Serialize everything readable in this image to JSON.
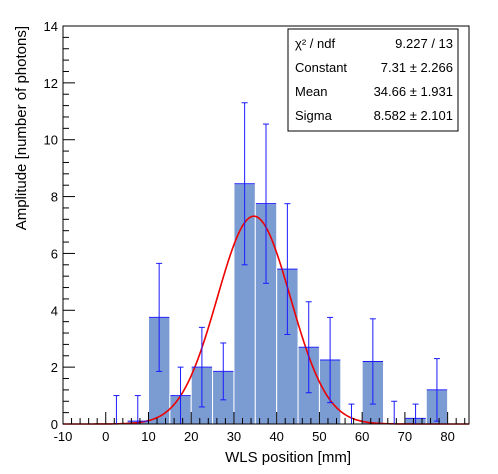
{
  "chart_data": {
    "type": "bar",
    "xlabel": "WLS position [mm]",
    "ylabel": "Amplitude [number of photons]",
    "xlim": [
      -10,
      85
    ],
    "ylim": [
      0,
      14
    ],
    "x_ticks": [
      "-10",
      "0",
      "10",
      "20",
      "30",
      "40",
      "50",
      "60",
      "70",
      "80"
    ],
    "y_ticks": [
      "0",
      "2",
      "4",
      "6",
      "8",
      "10",
      "12",
      "14"
    ],
    "bins": [
      {
        "x0": -10,
        "x1": -5,
        "value": 0,
        "err": 0
      },
      {
        "x0": -5,
        "x1": 0,
        "value": 0,
        "err": 0
      },
      {
        "x0": 0,
        "x1": 5,
        "value": 0,
        "err": 1.0
      },
      {
        "x0": 5,
        "x1": 10,
        "value": 0.1,
        "err": 0.9
      },
      {
        "x0": 10,
        "x1": 15,
        "value": 3.75,
        "err": 1.9
      },
      {
        "x0": 15,
        "x1": 20,
        "value": 1.0,
        "err": 1.0
      },
      {
        "x0": 20,
        "x1": 25,
        "value": 2.0,
        "err": 1.4
      },
      {
        "x0": 25,
        "x1": 30,
        "value": 1.85,
        "err": 1.0
      },
      {
        "x0": 30,
        "x1": 35,
        "value": 8.45,
        "err": 2.85
      },
      {
        "x0": 35,
        "x1": 40,
        "value": 7.75,
        "err": 2.8
      },
      {
        "x0": 40,
        "x1": 45,
        "value": 5.45,
        "err": 2.3
      },
      {
        "x0": 45,
        "x1": 50,
        "value": 2.7,
        "err": 1.6
      },
      {
        "x0": 50,
        "x1": 55,
        "value": 2.25,
        "err": 1.5
      },
      {
        "x0": 55,
        "x1": 60,
        "value": 0,
        "err": 0.7
      },
      {
        "x0": 60,
        "x1": 65,
        "value": 2.2,
        "err": 1.5
      },
      {
        "x0": 65,
        "x1": 70,
        "value": 0,
        "err": 0.8
      },
      {
        "x0": 70,
        "x1": 75,
        "value": 0.2,
        "err": 0.5
      },
      {
        "x0": 75,
        "x1": 80,
        "value": 1.2,
        "err": 1.1
      },
      {
        "x0": 80,
        "x1": 85,
        "value": 0,
        "err": 0
      }
    ],
    "fit": {
      "constant": 7.31,
      "mean": 34.66,
      "sigma": 8.582
    },
    "colors": {
      "fill": "#7b9bd3",
      "error_bar": "#1a1aff",
      "fit_line": "#ee0000",
      "axis": "#000000"
    },
    "stats": [
      {
        "label": "χ² / ndf",
        "value": "9.227 / 13"
      },
      {
        "label": "Constant",
        "value": "7.31 ± 2.266"
      },
      {
        "label": "Mean",
        "value": "34.66 ± 1.931"
      },
      {
        "label": "Sigma",
        "value": "8.582 ± 2.101"
      }
    ],
    "stats_placement": "top-right",
    "grid": false
  }
}
